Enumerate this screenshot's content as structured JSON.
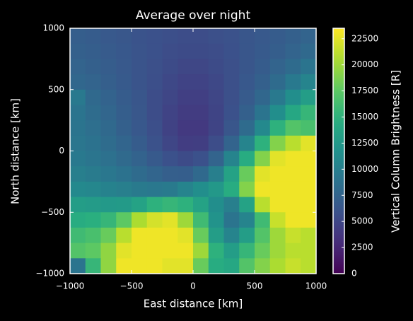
{
  "chart_data": {
    "type": "heatmap",
    "title": "Average over night",
    "xlabel": "East distance [km]",
    "ylabel": "North distance [km]",
    "colorbar_label": "Vertical Column Brightness [R]",
    "colormap": "viridis",
    "xlim": [
      -1000,
      1000
    ],
    "ylim": [
      -1000,
      1000
    ],
    "clim": [
      0,
      23500
    ],
    "xticks": [
      {
        "value": -1000,
        "label": "−1000"
      },
      {
        "value": -500,
        "label": "−500"
      },
      0,
      500,
      1000
    ],
    "yticks": [
      {
        "value": -1000,
        "label": "−1000"
      },
      {
        "value": -500,
        "label": "−500"
      },
      0,
      500,
      1000
    ],
    "cticks": [
      0,
      2500,
      5000,
      7500,
      10000,
      12500,
      15000,
      17500,
      20000,
      22500
    ],
    "x": [
      -937.5,
      -812.5,
      -687.5,
      -562.5,
      -437.5,
      -312.5,
      -187.5,
      -62.5,
      62.5,
      187.5,
      312.5,
      437.5,
      562.5,
      687.5,
      812.5,
      937.5
    ],
    "y": [
      937.5,
      812.5,
      687.5,
      562.5,
      437.5,
      312.5,
      187.5,
      62.5,
      -62.5,
      -187.5,
      -312.5,
      -437.5,
      -562.5,
      -687.5,
      -812.5,
      -937.5
    ],
    "z": [
      [
        7000,
        6800,
        6500,
        6300,
        6000,
        5800,
        5600,
        5500,
        5500,
        5700,
        5900,
        6200,
        6500,
        6800,
        7200,
        7500
      ],
      [
        7200,
        7000,
        6700,
        6400,
        6100,
        5800,
        5500,
        5300,
        5300,
        5500,
        5800,
        6200,
        6600,
        7000,
        7500,
        8000
      ],
      [
        7500,
        7200,
        6900,
        6500,
        6100,
        5700,
        5300,
        5000,
        5000,
        5300,
        5700,
        6200,
        6800,
        7500,
        8200,
        9000
      ],
      [
        7800,
        7500,
        7100,
        6600,
        6100,
        5600,
        5100,
        4700,
        4700,
        5100,
        5700,
        6400,
        7200,
        8200,
        9500,
        10500
      ],
      [
        9500,
        8000,
        7400,
        6800,
        6200,
        5500,
        4900,
        4400,
        4400,
        4900,
        5700,
        6700,
        7800,
        9500,
        11500,
        13000
      ],
      [
        9000,
        8300,
        7700,
        7000,
        6300,
        5500,
        4700,
        4100,
        4100,
        4800,
        5800,
        7200,
        9000,
        11500,
        14000,
        15500
      ],
      [
        9000,
        8500,
        8000,
        7200,
        6400,
        5600,
        4600,
        3900,
        3900,
        4800,
        6200,
        8200,
        11000,
        15000,
        17000,
        16500
      ],
      [
        9200,
        8800,
        8300,
        7600,
        6800,
        5900,
        4900,
        4200,
        4300,
        5500,
        7500,
        10500,
        15000,
        19000,
        21000,
        22500
      ],
      [
        9500,
        9100,
        8700,
        8100,
        7400,
        6600,
        5800,
        5300,
        5800,
        7500,
        10500,
        14500,
        19000,
        22500,
        23000,
        23000
      ],
      [
        10000,
        9700,
        9300,
        8800,
        8200,
        7600,
        7100,
        7000,
        8000,
        10000,
        13500,
        18000,
        22500,
        23000,
        23000,
        23000
      ],
      [
        11000,
        10800,
        10300,
        10000,
        9600,
        9400,
        9600,
        10500,
        11500,
        12500,
        14500,
        19000,
        23000,
        23000,
        23000,
        23000
      ],
      [
        13000,
        12800,
        12600,
        12700,
        13500,
        15000,
        15500,
        15000,
        13500,
        11500,
        10000,
        13500,
        21000,
        23000,
        23000,
        23000
      ],
      [
        14500,
        14800,
        15500,
        17500,
        20500,
        22000,
        22500,
        20000,
        16000,
        12000,
        9000,
        10500,
        16000,
        21500,
        23000,
        23000
      ],
      [
        16000,
        16500,
        18000,
        21000,
        23000,
        23000,
        23000,
        22500,
        18000,
        13000,
        10500,
        13000,
        17000,
        20000,
        21500,
        21000
      ],
      [
        17000,
        17500,
        19500,
        22500,
        23000,
        23000,
        23000,
        23000,
        20000,
        15000,
        13000,
        15500,
        18000,
        20000,
        21000,
        21000
      ],
      [
        9000,
        15500,
        19500,
        23000,
        23000,
        23000,
        22500,
        22500,
        18000,
        14500,
        14000,
        17000,
        19000,
        20500,
        21500,
        21000
      ]
    ]
  }
}
